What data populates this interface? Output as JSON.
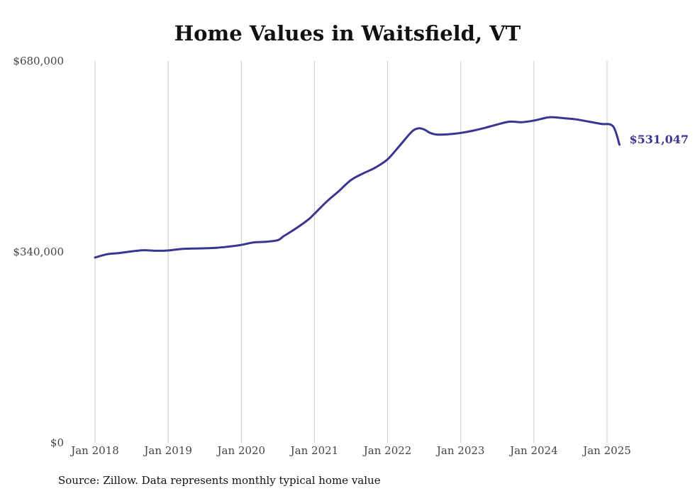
{
  "chart_data": {
    "type": "line",
    "title": "Home Values in Waitsfield, VT",
    "source_note": "Source: Zillow. Data represents monthly typical home value",
    "y_ticks": [
      {
        "value": 0,
        "label": "$0"
      },
      {
        "value": 340000,
        "label": "$340,000"
      },
      {
        "value": 680000,
        "label": "$680,000"
      }
    ],
    "ylim": [
      0,
      680000
    ],
    "x_ticks": [
      {
        "value": 2018,
        "label": "Jan 2018"
      },
      {
        "value": 2019,
        "label": "Jan 2019"
      },
      {
        "value": 2020,
        "label": "Jan 2020"
      },
      {
        "value": 2021,
        "label": "Jan 2021"
      },
      {
        "value": 2022,
        "label": "Jan 2022"
      },
      {
        "value": 2023,
        "label": "Jan 2023"
      },
      {
        "value": 2024,
        "label": "Jan 2024"
      },
      {
        "value": 2025,
        "label": "Jan 2025"
      }
    ],
    "xlim": [
      2018,
      2025.17
    ],
    "grid": "vertical",
    "line_color": "#3b3592",
    "grid_color": "#c8c8c8",
    "end_label": "$531,047",
    "series": [
      {
        "x": [
          2018,
          2018.17,
          2018.33,
          2018.5,
          2018.67,
          2018.83,
          2019,
          2019.17,
          2019.33,
          2019.5,
          2019.67,
          2019.83,
          2020,
          2020.17,
          2020.33,
          2020.5,
          2020.58,
          2020.75,
          2020.92,
          2021,
          2021.17,
          2021.33,
          2021.5,
          2021.67,
          2021.83,
          2022,
          2022.17,
          2022.33,
          2022.42,
          2022.5,
          2022.58,
          2022.67,
          2022.83,
          2023,
          2023.17,
          2023.33,
          2023.5,
          2023.67,
          2023.83,
          2024,
          2024.17,
          2024.25,
          2024.42,
          2024.58,
          2024.75,
          2024.92,
          2025.08,
          2025.17
        ],
        "y": [
          330000,
          336000,
          338000,
          341000,
          343000,
          342000,
          342500,
          345000,
          346000,
          346500,
          347500,
          349500,
          352500,
          357000,
          358000,
          361000,
          368000,
          382000,
          398000,
          408000,
          430000,
          448000,
          468000,
          480000,
          490000,
          505000,
          530000,
          554000,
          560000,
          558000,
          552000,
          549000,
          549500,
          552000,
          556000,
          561000,
          567000,
          572000,
          571000,
          574000,
          579000,
          580000,
          578000,
          576000,
          572000,
          568000,
          564000,
          531047
        ]
      }
    ]
  }
}
